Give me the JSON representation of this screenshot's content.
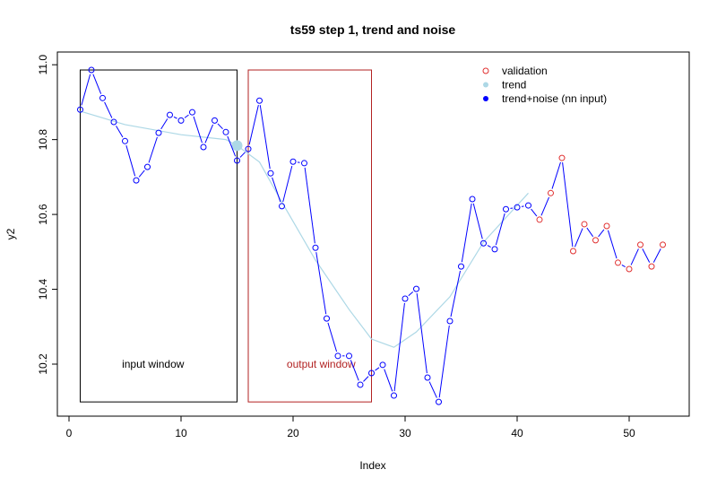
{
  "chart_data": {
    "type": "line",
    "title": "ts59 step 1, trend and noise",
    "xlabel": "Index",
    "ylabel": "y2",
    "xlim": [
      -1.04,
      55.36
    ],
    "ylim": [
      10.061,
      11.034
    ],
    "x_ticks": [
      0,
      10,
      20,
      30,
      40,
      50
    ],
    "y_ticks": [
      10.2,
      10.4,
      10.6,
      10.8,
      11.0
    ],
    "y_tick_labels": [
      "10.2",
      "10.4",
      "10.6",
      "10.8",
      "11.0"
    ],
    "grid": false,
    "legend_position": "top-right",
    "legend": [
      {
        "label": "validation",
        "color": "#e03030",
        "marker": "open-circle"
      },
      {
        "label": "trend",
        "color": "#add8e6",
        "marker": "filled-circle"
      },
      {
        "label": "trend+noise (nn input)",
        "color": "#0000ff",
        "marker": "filled-circle"
      }
    ],
    "colors": {
      "series": "#0000ff",
      "validation": "#e03030",
      "trend": "#add8e6",
      "input_window": "#000000",
      "output_window": "#b22222"
    },
    "series": {
      "x": [
        1,
        2,
        3,
        4,
        5,
        6,
        7,
        8,
        9,
        10,
        11,
        12,
        13,
        14,
        15,
        16,
        17,
        18,
        19,
        20,
        21,
        22,
        23,
        24,
        25,
        26,
        27,
        28,
        29,
        30,
        31,
        32,
        33,
        34,
        35,
        36,
        37,
        38,
        39,
        40,
        41,
        42,
        43,
        44,
        45,
        46,
        47,
        48,
        49,
        50,
        51,
        52,
        53
      ],
      "y": [
        10.88,
        10.986,
        10.911,
        10.847,
        10.796,
        10.691,
        10.727,
        10.818,
        10.866,
        10.851,
        10.873,
        10.78,
        10.851,
        10.82,
        10.744,
        10.775,
        10.904,
        10.71,
        10.622,
        10.741,
        10.737,
        10.511,
        10.322,
        10.222,
        10.222,
        10.145,
        10.176,
        10.198,
        10.116,
        10.375,
        10.401,
        10.164,
        10.099,
        10.315,
        10.461,
        10.641,
        10.523,
        10.507,
        10.614,
        10.619,
        10.624,
        10.586,
        10.657,
        10.751,
        10.502,
        10.574,
        10.531,
        10.569,
        10.471,
        10.454,
        10.519,
        10.461,
        10.519
      ],
      "validation_from_index": 42
    },
    "trend": {
      "x": [
        1,
        5,
        10,
        14,
        15,
        17,
        19,
        22,
        25,
        27,
        29,
        31,
        34,
        37,
        41
      ],
      "y": [
        10.876,
        10.84,
        10.813,
        10.8,
        10.784,
        10.74,
        10.633,
        10.478,
        10.346,
        10.267,
        10.245,
        10.286,
        10.38,
        10.526,
        10.657
      ]
    },
    "trend_highlight": {
      "x": 15,
      "y": 10.784
    },
    "windows": [
      {
        "label": "input window",
        "x": [
          1,
          15
        ],
        "y": [
          10.099,
          10.986
        ],
        "label_at": [
          7.5,
          10.2
        ]
      },
      {
        "label": "output window",
        "x": [
          16,
          27
        ],
        "y": [
          10.099,
          10.986
        ],
        "label_at": [
          22.5,
          10.2
        ]
      }
    ]
  }
}
